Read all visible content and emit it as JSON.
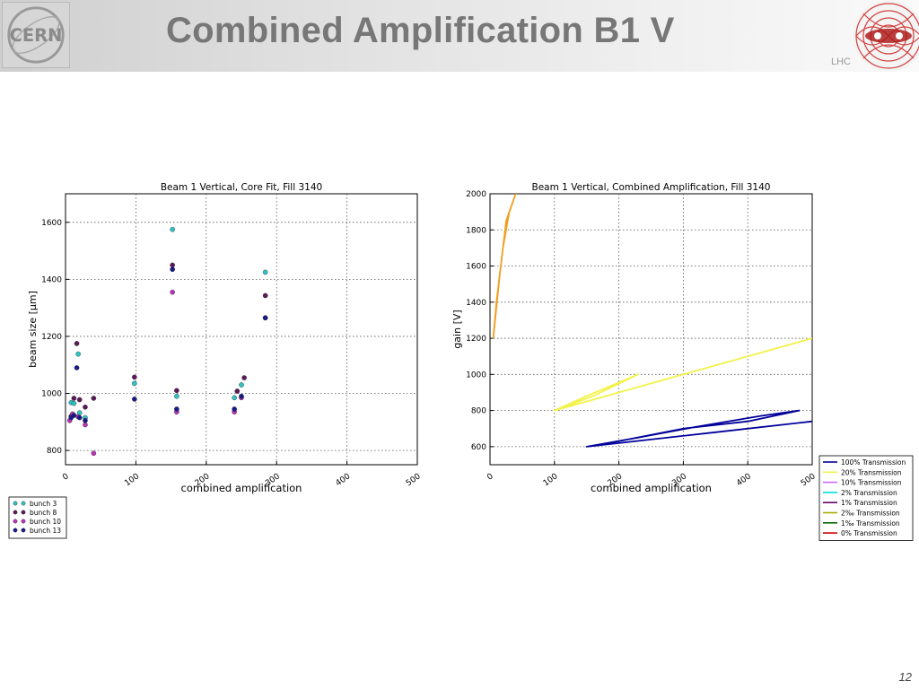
{
  "slide": {
    "title": "Combined Amplification B1 V",
    "logo_left_text": "CERN",
    "logo_right_text": "LHC",
    "page_number": "12"
  },
  "chart_data": [
    {
      "type": "scatter",
      "title": "Beam 1 Vertical, Core Fit, Fill 3140",
      "xlabel": "combined amplification",
      "ylabel": "beam size [μm]",
      "xlim": [
        0,
        500
      ],
      "ylim": [
        750,
        1700
      ],
      "xticks": [
        0,
        100,
        200,
        300,
        400,
        500
      ],
      "yticks": [
        800,
        1000,
        1200,
        1400,
        1600
      ],
      "grid": true,
      "legend_position": "below-left",
      "series": [
        {
          "name": "bunch 3",
          "color": "#2ec4c4",
          "points": [
            [
              8,
              968
            ],
            [
              12,
              965
            ],
            [
              18,
              1138
            ],
            [
              20,
              932
            ],
            [
              28,
              915
            ],
            [
              98,
              1035
            ],
            [
              152,
              1575
            ],
            [
              158,
              990
            ],
            [
              240,
              985
            ],
            [
              250,
              1030
            ],
            [
              284,
              1425
            ]
          ]
        },
        {
          "name": "bunch 8",
          "color": "#5c1a5c",
          "points": [
            [
              8,
              920
            ],
            [
              12,
              983
            ],
            [
              16,
              1175
            ],
            [
              20,
              978
            ],
            [
              28,
              952
            ],
            [
              40,
              983
            ],
            [
              98,
              1057
            ],
            [
              152,
              1450
            ],
            [
              158,
              1010
            ],
            [
              244,
              1008
            ],
            [
              254,
              1055
            ],
            [
              284,
              1343
            ]
          ]
        },
        {
          "name": "bunch 10",
          "color": "#bb33bb",
          "points": [
            [
              6,
              905
            ],
            [
              10,
              928
            ],
            [
              18,
              918
            ],
            [
              28,
              890
            ],
            [
              40,
              790
            ],
            [
              152,
              1355
            ],
            [
              158,
              935
            ],
            [
              240,
              935
            ],
            [
              250,
              985
            ],
            [
              284,
              1265
            ]
          ]
        },
        {
          "name": "bunch 13",
          "color": "#1a1a8c",
          "points": [
            [
              8,
              915
            ],
            [
              12,
              923
            ],
            [
              16,
              1090
            ],
            [
              20,
              915
            ],
            [
              28,
              905
            ],
            [
              98,
              980
            ],
            [
              152,
              1435
            ],
            [
              158,
              945
            ],
            [
              240,
              945
            ],
            [
              250,
              990
            ],
            [
              284,
              1265
            ]
          ]
        }
      ]
    },
    {
      "type": "line",
      "title": "Beam 1 Vertical, Combined Amplification, Fill 3140",
      "xlabel": "combined amplification",
      "ylabel": "gain [V]",
      "xlim": [
        0,
        500
      ],
      "ylim": [
        500,
        2000
      ],
      "xticks": [
        0,
        100,
        200,
        300,
        400,
        500
      ],
      "yticks": [
        600,
        800,
        1000,
        1200,
        1400,
        1600,
        1800,
        2000
      ],
      "grid": true,
      "legend_position": "below-right",
      "series": [
        {
          "name": "100% Transmission",
          "color": "#00009a",
          "points": [
            [
              150,
              600
            ],
            [
              200,
              630
            ],
            [
              300,
              700
            ],
            [
              400,
              740
            ],
            [
              480,
              800
            ],
            [
              420,
              770
            ],
            [
              320,
              710
            ],
            [
              230,
              650
            ],
            [
              150,
              600
            ],
            [
              350,
              680
            ],
            [
              500,
              740
            ]
          ]
        },
        {
          "name": "20% Transmission",
          "color": "#f2f24a",
          "points": [
            [
              100,
              800
            ],
            [
              160,
              880
            ],
            [
              230,
              1000
            ],
            [
              150,
              880
            ],
            [
              100,
              800
            ],
            [
              300,
              1000
            ],
            [
              500,
              1200
            ]
          ]
        },
        {
          "name": "10% Transmission",
          "color": "#cc66ff",
          "points": []
        },
        {
          "name": "2% Transmission",
          "color": "#00dddd",
          "points": []
        },
        {
          "name": "1% Transmission",
          "color": "#660066",
          "points": []
        },
        {
          "name": "2‰ Transmission",
          "color": "#aaaa00",
          "points": []
        },
        {
          "name": "1‰ Transmission",
          "color": "#006600",
          "points": []
        },
        {
          "name": "0% Transmission",
          "color": "#cc0000",
          "points": []
        },
        {
          "name": "",
          "color": "#f0a020",
          "points": [
            [
              5,
              1200
            ],
            [
              15,
              1550
            ],
            [
              25,
              1850
            ],
            [
              40,
              2000
            ],
            [
              30,
              1900
            ],
            [
              20,
              1700
            ],
            [
              10,
              1400
            ],
            [
              5,
              1200
            ]
          ]
        }
      ]
    }
  ]
}
